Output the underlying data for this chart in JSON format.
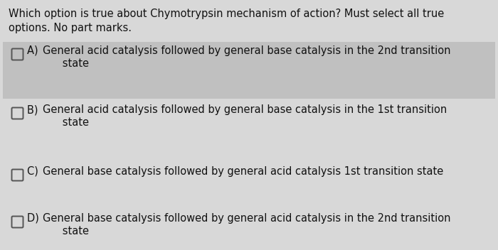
{
  "title_line1": "Which option is true about Chymotrypsin mechanism of action? Must select all true",
  "title_line2": "options. No part marks.",
  "options": [
    {
      "label": "A) ",
      "line1": "General acid catalysis followed by general base catalysis in the 2nd transition",
      "line2": "      state",
      "highlighted": true
    },
    {
      "label": "B) ",
      "line1": "General acid catalysis followed by general base catalysis in the 1st transition",
      "line2": "      state",
      "highlighted": false
    },
    {
      "label": "C) ",
      "line1": "General base catalysis followed by general acid catalysis 1st transition state",
      "line2": null,
      "highlighted": false
    },
    {
      "label": "D) ",
      "line1": "General base catalysis followed by general acid catalysis in the 2nd transition",
      "line2": "      state",
      "highlighted": false
    }
  ],
  "bg_color": "#d8d8d8",
  "highlight_color": "#c0c0c0",
  "text_color": "#111111",
  "title_fontsize": 10.5,
  "option_fontsize": 10.5,
  "checkbox_color": "#555555",
  "option_bg_alpha": 0.85
}
